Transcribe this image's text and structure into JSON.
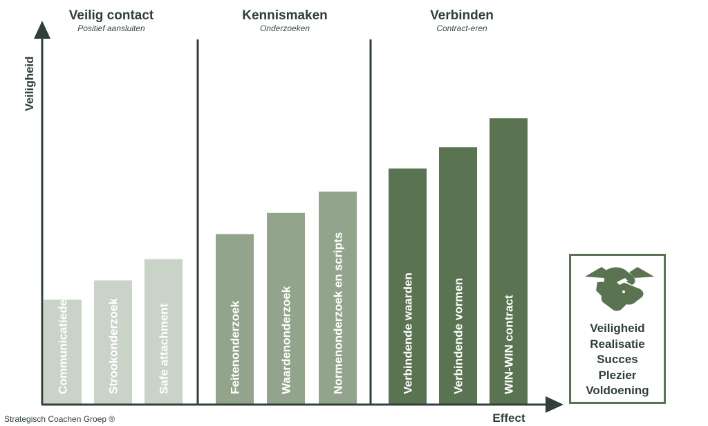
{
  "chart_data": {
    "type": "bar",
    "xlabel": "Effect",
    "ylabel": "Veiligheid",
    "groups": [
      {
        "title": "Veilig contact",
        "subtitle": "Positief aansluiten",
        "color": "#c9d3c8",
        "bars": [
          {
            "label": "Communicatiedeuren",
            "value": 27
          },
          {
            "label": "Strookonderzoek",
            "value": 32
          },
          {
            "label": "Safe attachment",
            "value": 37.5
          }
        ]
      },
      {
        "title": "Kennismaken",
        "subtitle": "Onderzoeken",
        "color": "#93a48c",
        "bars": [
          {
            "label": "Feitenonderzoek",
            "value": 44
          },
          {
            "label": "Waardenonderzoek",
            "value": 49.5
          },
          {
            "label": "Normenonderzoek en scripts",
            "value": 55
          }
        ]
      },
      {
        "title": "Verbinden",
        "subtitle": "Contract-eren",
        "color": "#5a7452",
        "bars": [
          {
            "label": "Verbindende waarden",
            "value": 61
          },
          {
            "label": "Verbindende vormen",
            "value": 66.5
          },
          {
            "label": "WIN-WIN contract",
            "value": 74
          }
        ]
      }
    ],
    "ylim": [
      0,
      100
    ]
  },
  "result_box": {
    "icon": "handshake-icon",
    "items": [
      "Veiligheid",
      "Realisatie",
      "Succes",
      "Plezier",
      "Voldoening"
    ]
  },
  "footer": "Strategisch Coachen Groep ®"
}
